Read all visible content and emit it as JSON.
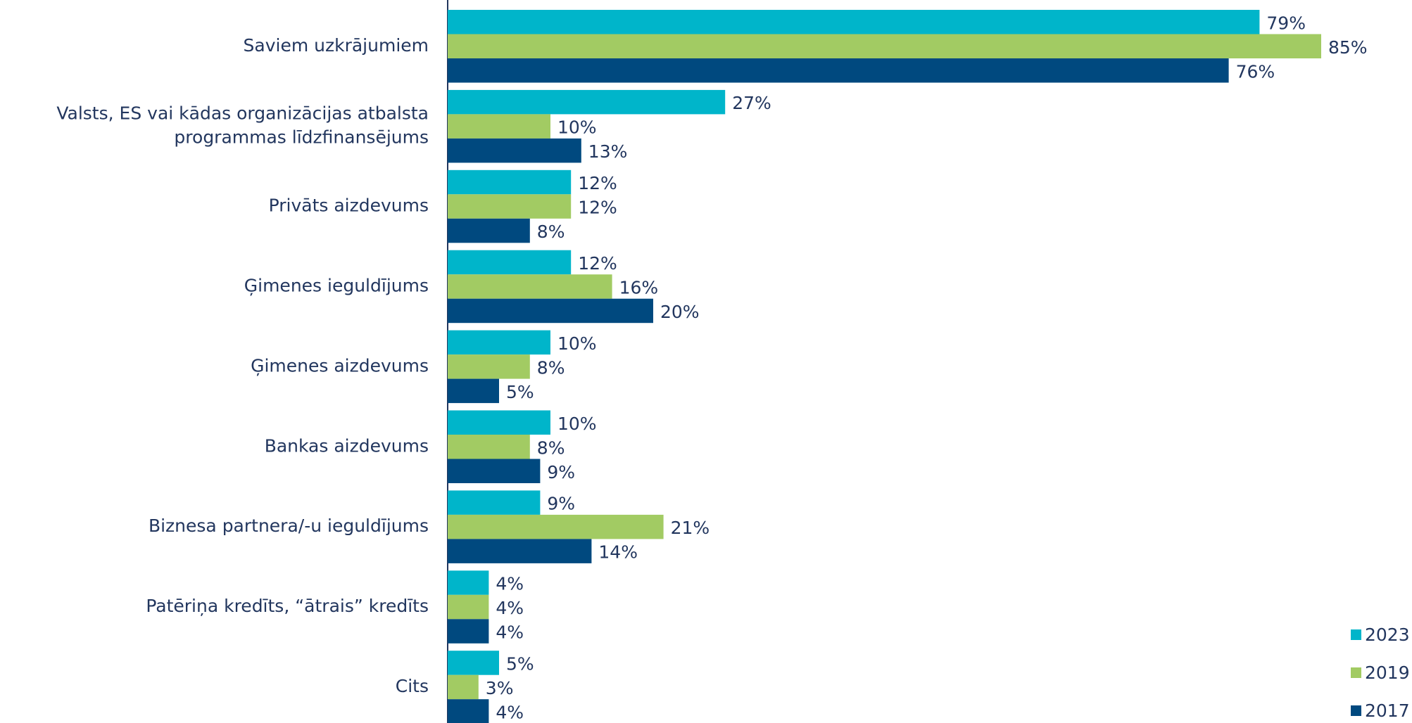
{
  "chart_data": {
    "type": "bar",
    "orientation": "horizontal",
    "categories": [
      "Saviem uzkrājumiem",
      [
        "Valsts, ES vai kādas organizācijas atbalsta",
        "programmas līdzfinansējums"
      ],
      "Privāts aizdevums",
      "Ģimenes ieguldījums",
      "Ģimenes aizdevums",
      "Bankas aizdevums",
      "Biznesa partnera/-u ieguldījums",
      "Patēriņa kredīts, “ātrais” kredīts",
      "Cits"
    ],
    "series": [
      {
        "name": "2023",
        "color": "#00b5ca",
        "values": [
          79,
          27,
          12,
          12,
          10,
          10,
          9,
          4,
          5
        ],
        "value_labels": [
          "79%",
          "27%",
          "12%",
          "12%",
          "10%",
          "10%",
          "9%",
          "4%",
          "5%"
        ]
      },
      {
        "name": "2019",
        "color": "#a2cb63",
        "values": [
          85,
          10,
          12,
          16,
          8,
          8,
          21,
          4,
          3
        ],
        "value_labels": [
          "85%",
          "10%",
          "12%",
          "16%",
          "8%",
          "8%",
          "21%",
          "4%",
          "3%"
        ]
      },
      {
        "name": "2017",
        "color": "#00497f",
        "values": [
          76,
          13,
          8,
          20,
          5,
          9,
          14,
          4,
          4
        ],
        "value_labels": [
          "76%",
          "13%",
          "8%",
          "20%",
          "5%",
          "9%",
          "14%",
          "4%",
          "4%"
        ]
      }
    ],
    "legend": "bottom-right"
  }
}
